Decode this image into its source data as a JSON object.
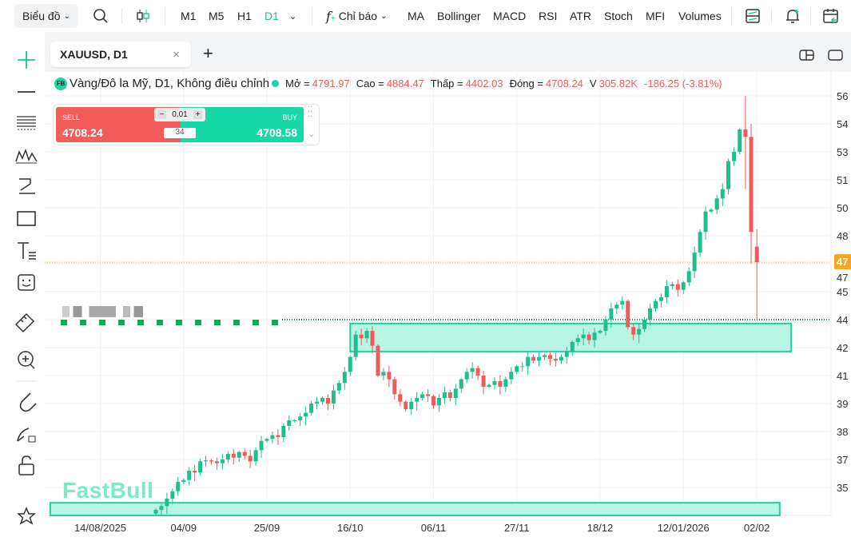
{
  "toolbar": {
    "chart_menu": "Biểu đồ",
    "timeframes": [
      "M1",
      "M5",
      "H1",
      "D1"
    ],
    "active_timeframe": "D1",
    "indicators_label": "Chỉ báo",
    "indicators": [
      "MA",
      "Bollinger",
      "MACD",
      "RSI",
      "ATR",
      "Stoch",
      "MFI",
      "Volumes"
    ]
  },
  "tab": {
    "title": "XAUUSD, D1"
  },
  "legend": {
    "badge": "FB",
    "name": "Vàng/Đô la Mỹ, D1, Không điều chỉnh",
    "open_label": "Mở =",
    "open": "4791.97",
    "high_label": "Cao =",
    "high": "4884.47",
    "low_label": "Thấp =",
    "low": "4402.03",
    "close_label": "Đóng =",
    "close": "4708.24",
    "vol_label": "V",
    "vol": "305.82K",
    "change": "-186.25 (-3.81%)"
  },
  "trade": {
    "sell_label": "SELL",
    "sell_price": "4708.24",
    "buy_label": "BUY",
    "buy_price": "4708.58",
    "lot": "0.01",
    "spread": "34"
  },
  "watermark": "FastBull",
  "colors": {
    "up": "#1dbf8e",
    "down": "#f05a5a",
    "accent": "#17d9a6",
    "price_badge": "#f5a623"
  },
  "chart_data": {
    "type": "candlestick",
    "symbol": "XAUUSD",
    "timeframe": "D1",
    "ylim": [
      3350,
      5650
    ],
    "y_ticks": [
      5600,
      5450,
      5300,
      5150,
      5000,
      4850,
      4700,
      4550,
      4400,
      4250,
      4100,
      3950,
      3800,
      3650,
      3500
    ],
    "y_tick_labels": [
      "56",
      "54",
      "53",
      "51",
      "50",
      "48",
      "47",
      "45",
      "44",
      "42",
      "41",
      "39",
      "38",
      "37",
      "35"
    ],
    "current_price_label": "47",
    "current_price": 4708.24,
    "x_ticks": [
      {
        "index": -10,
        "label": "14/08/2025"
      },
      {
        "index": 5,
        "label": "04/09"
      },
      {
        "index": 20,
        "label": "25/09"
      },
      {
        "index": 35,
        "label": "16/10"
      },
      {
        "index": 50,
        "label": "06/11"
      },
      {
        "index": 65,
        "label": "27/11"
      },
      {
        "index": 80,
        "label": "18/12"
      },
      {
        "index": 95,
        "label": "12/01/2026"
      },
      {
        "index": 108,
        "label": "02/02"
      }
    ],
    "closes": [
      3380,
      3400,
      3440,
      3480,
      3530,
      3540,
      3590,
      3580,
      3640,
      3645,
      3640,
      3630,
      3650,
      3680,
      3660,
      3690,
      3670,
      3640,
      3700,
      3750,
      3760,
      3780,
      3770,
      3830,
      3860,
      3860,
      3880,
      3900,
      3950,
      3960,
      3980,
      3950,
      4020,
      4060,
      4120,
      4200,
      4320,
      4300,
      4340,
      4260,
      4100,
      4120,
      4080,
      4000,
      3960,
      3920,
      3960,
      3980,
      4000,
      3990,
      3940,
      3980,
      4010,
      3980,
      4030,
      4080,
      4120,
      4140,
      4100,
      4040,
      4050,
      4070,
      4040,
      4080,
      4120,
      4150,
      4150,
      4200,
      4180,
      4200,
      4210,
      4190,
      4180,
      4200,
      4230,
      4280,
      4300,
      4320,
      4290,
      4330,
      4340,
      4400,
      4460,
      4480,
      4500,
      4360,
      4320,
      4350,
      4400,
      4460,
      4500,
      4520,
      4580,
      4590,
      4560,
      4600,
      4660,
      4760,
      4870,
      4980,
      4990,
      5050,
      5100,
      5250,
      5300,
      5420
    ],
    "last_candles": [
      {
        "o": 5420,
        "h": 5600,
        "l": 5100,
        "c": 5380
      },
      {
        "o": 5380,
        "h": 5450,
        "l": 4700,
        "c": 4870
      },
      {
        "o": 4791.97,
        "h": 4884.47,
        "l": 4402.03,
        "c": 4708.24
      }
    ],
    "zones": [
      {
        "top": 4379,
        "bottom": 4229,
        "from_index": 35,
        "to_index": 114
      },
      {
        "top": 3418,
        "bottom": 3300,
        "from_index": -19,
        "to_index": 112
      }
    ],
    "support_line": 4400
  }
}
